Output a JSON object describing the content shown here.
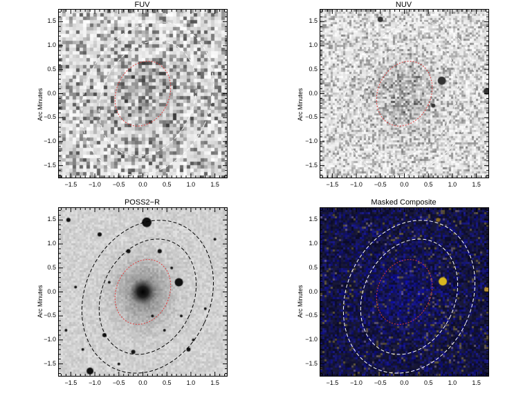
{
  "panels": [
    {
      "id": "fuv",
      "title": "FUV",
      "ylabel": "Arc Minutes",
      "background": "light-noise",
      "ellipse_colors": {
        "inner": "#e03c3c",
        "outer": "#ffffff"
      }
    },
    {
      "id": "nuv",
      "title": "NUV",
      "ylabel": "Arc Minutes",
      "background": "fine-noise",
      "ellipse_colors": {
        "inner": "#e03c3c",
        "outer": "#ffffff"
      }
    },
    {
      "id": "poss",
      "title": "POSS2−R",
      "ylabel": "Arc Minutes",
      "background": "grey-field",
      "ellipse_colors": {
        "inner": "#e03c3c",
        "outer": "#000000"
      }
    },
    {
      "id": "comp",
      "title": "Masked Composite",
      "ylabel": "Arc Minutes",
      "background": "dark-composite",
      "ellipse_colors": {
        "inner": "#e03c3c",
        "outer": "#ffffff"
      }
    }
  ],
  "axes": {
    "range": [
      -1.75,
      1.75
    ],
    "ticks": [
      -1.5,
      -1.0,
      -0.5,
      0.0,
      0.5,
      1.0,
      1.5
    ],
    "xtick_labels": [
      "−1.5",
      "−1.0",
      "−0.5",
      "0.0",
      "0.5",
      "1.0",
      "1.5"
    ],
    "ytick_labels": [
      "−1.5",
      "−1.0",
      "−0.5",
      "0.0",
      "0.5",
      "1.0",
      "1.5"
    ]
  }
}
